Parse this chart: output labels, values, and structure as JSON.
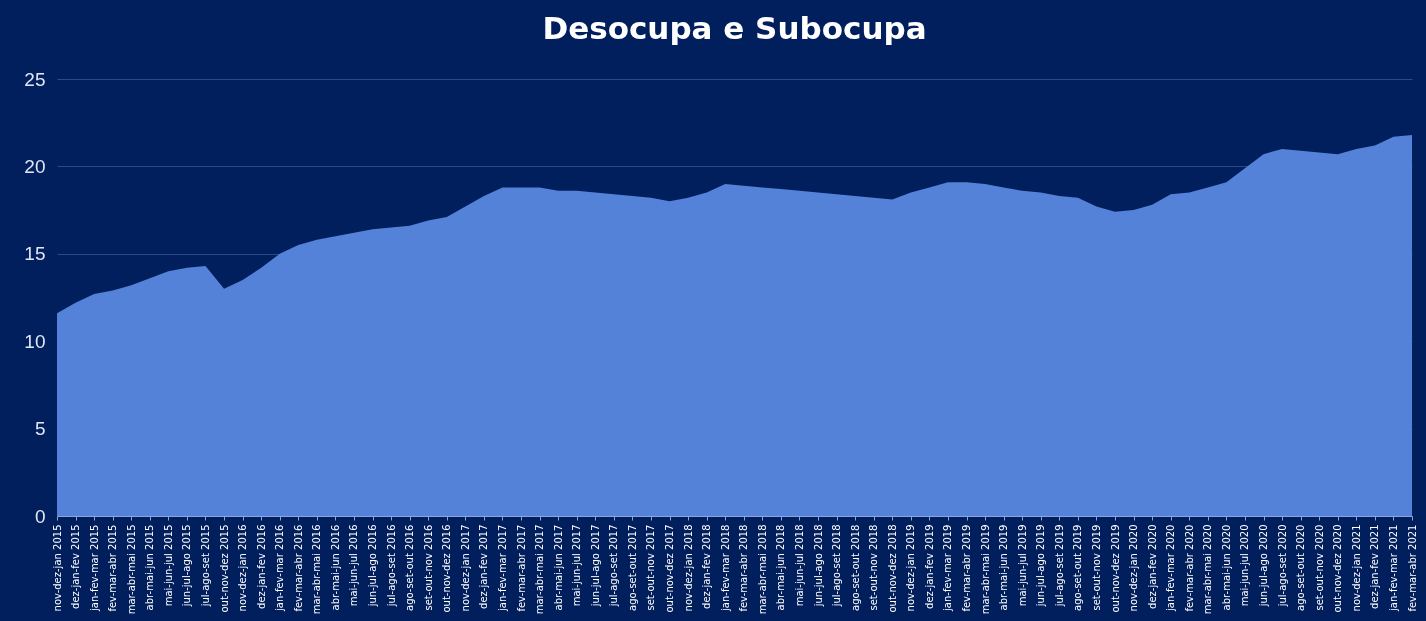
{
  "chart_data": {
    "type": "area",
    "title": "Desocupa  e Subocupa",
    "categories": [
      "nov-dez-jan 2015",
      "dez-jan-fev 2015",
      "jan-fev-mar 2015",
      "fev-mar-abr 2015",
      "mar-abr-mai 2015",
      "abr-mai-jun 2015",
      "mai-jun-jul 2015",
      "jun-jul-ago 2015",
      "jul-ago-set 2015",
      "out-nov-dez 2015",
      "nov-dez-jan 2016",
      "dez-jan-fev 2016",
      "jan-fev-mar 2016",
      "fev-mar-abr 2016",
      "mar-abr-mai 2016",
      "abr-mai-jun 2016",
      "mai-jun-jul 2016",
      "jun-jul-ago 2016",
      "jul-ago-set 2016",
      "ago-set-out 2016",
      "set-out-nov 2016",
      "out-nov-dez 2016",
      "nov-dez-jan 2017",
      "dez-jan-fev 2017",
      "jan-fev-mar 2017",
      "fev-mar-abr 2017",
      "mar-abr-mai 2017",
      "abr-mai-jun 2017",
      "mai-jun-jul 2017",
      "jun-jul-ago 2017",
      "jul-ago-set 2017",
      "ago-set-out 2017",
      "set-out-nov 2017",
      "out-nov-dez 2017",
      "nov-dez-jan 2018",
      "dez-jan-fev 2018",
      "jan-fev-mar 2018",
      "fev-mar-abr 2018",
      "mar-abr-mai 2018",
      "abr-mai-jun 2018",
      "mai-jun-jul 2018",
      "jun-jul-ago 2018",
      "jul-ago-set 2018",
      "ago-set-out 2018",
      "set-out-nov 2018",
      "out-nov-dez 2018",
      "nov-dez-jan 2019",
      "dez-jan-fev 2019",
      "jan-fev-mar 2019",
      "fev-mar-abr 2019",
      "mar-abr-mai 2019",
      "abr-mai-jun 2019",
      "mai-jun-jul 2019",
      "jun-jul-ago 2019",
      "jul-ago-set 2019",
      "ago-set-out 2019",
      "set-out-nov 2019",
      "out-nov-dez 2019",
      "nov-dez-jan 2020",
      "dez-jan-fev 2020",
      "jan-fev-mar 2020",
      "fev-mar-abr 2020",
      "mar-abr-mai 2020",
      "abr-mai-jun 2020",
      "mai-jun-jul 2020",
      "jun-jul-ago 2020",
      "jul-ago-set 2020",
      "ago-set-out 2020",
      "set-out-nov 2020",
      "out-nov-dez 2020",
      "nov-dez-jan 2021",
      "dez-jan-fev 2021",
      "jan-fev-mar 2021",
      "fev-mar-abr 2021"
    ],
    "series": [
      {
        "color": "#5382d8",
        "values": [
          11.6,
          12.2,
          12.7,
          12.9,
          13.2,
          13.6,
          14.0,
          14.2,
          14.3,
          13.0,
          13.5,
          14.2,
          15.0,
          15.5,
          15.8,
          16.0,
          16.2,
          16.4,
          16.5,
          16.6,
          16.9,
          17.1,
          17.7,
          18.3,
          18.8,
          18.8,
          18.8,
          18.6,
          18.6,
          18.5,
          18.4,
          18.3,
          18.2,
          18.0,
          18.2,
          18.5,
          19.0,
          18.9,
          18.8,
          18.7,
          18.6,
          18.5,
          18.4,
          18.3,
          18.2,
          18.1,
          18.5,
          18.8,
          19.1,
          19.1,
          19.0,
          18.8,
          18.6,
          18.5,
          18.3,
          18.2,
          17.7,
          17.4,
          17.5,
          17.8,
          18.4,
          18.5,
          18.8,
          19.1,
          19.9,
          20.7,
          21.0,
          20.9,
          20.8,
          20.7,
          21.0,
          21.2,
          21.7,
          21.8
        ]
      }
    ],
    "ylim": [
      0,
      25
    ],
    "yticks": [
      0,
      5,
      10,
      15,
      20,
      25
    ],
    "grid": "y"
  }
}
